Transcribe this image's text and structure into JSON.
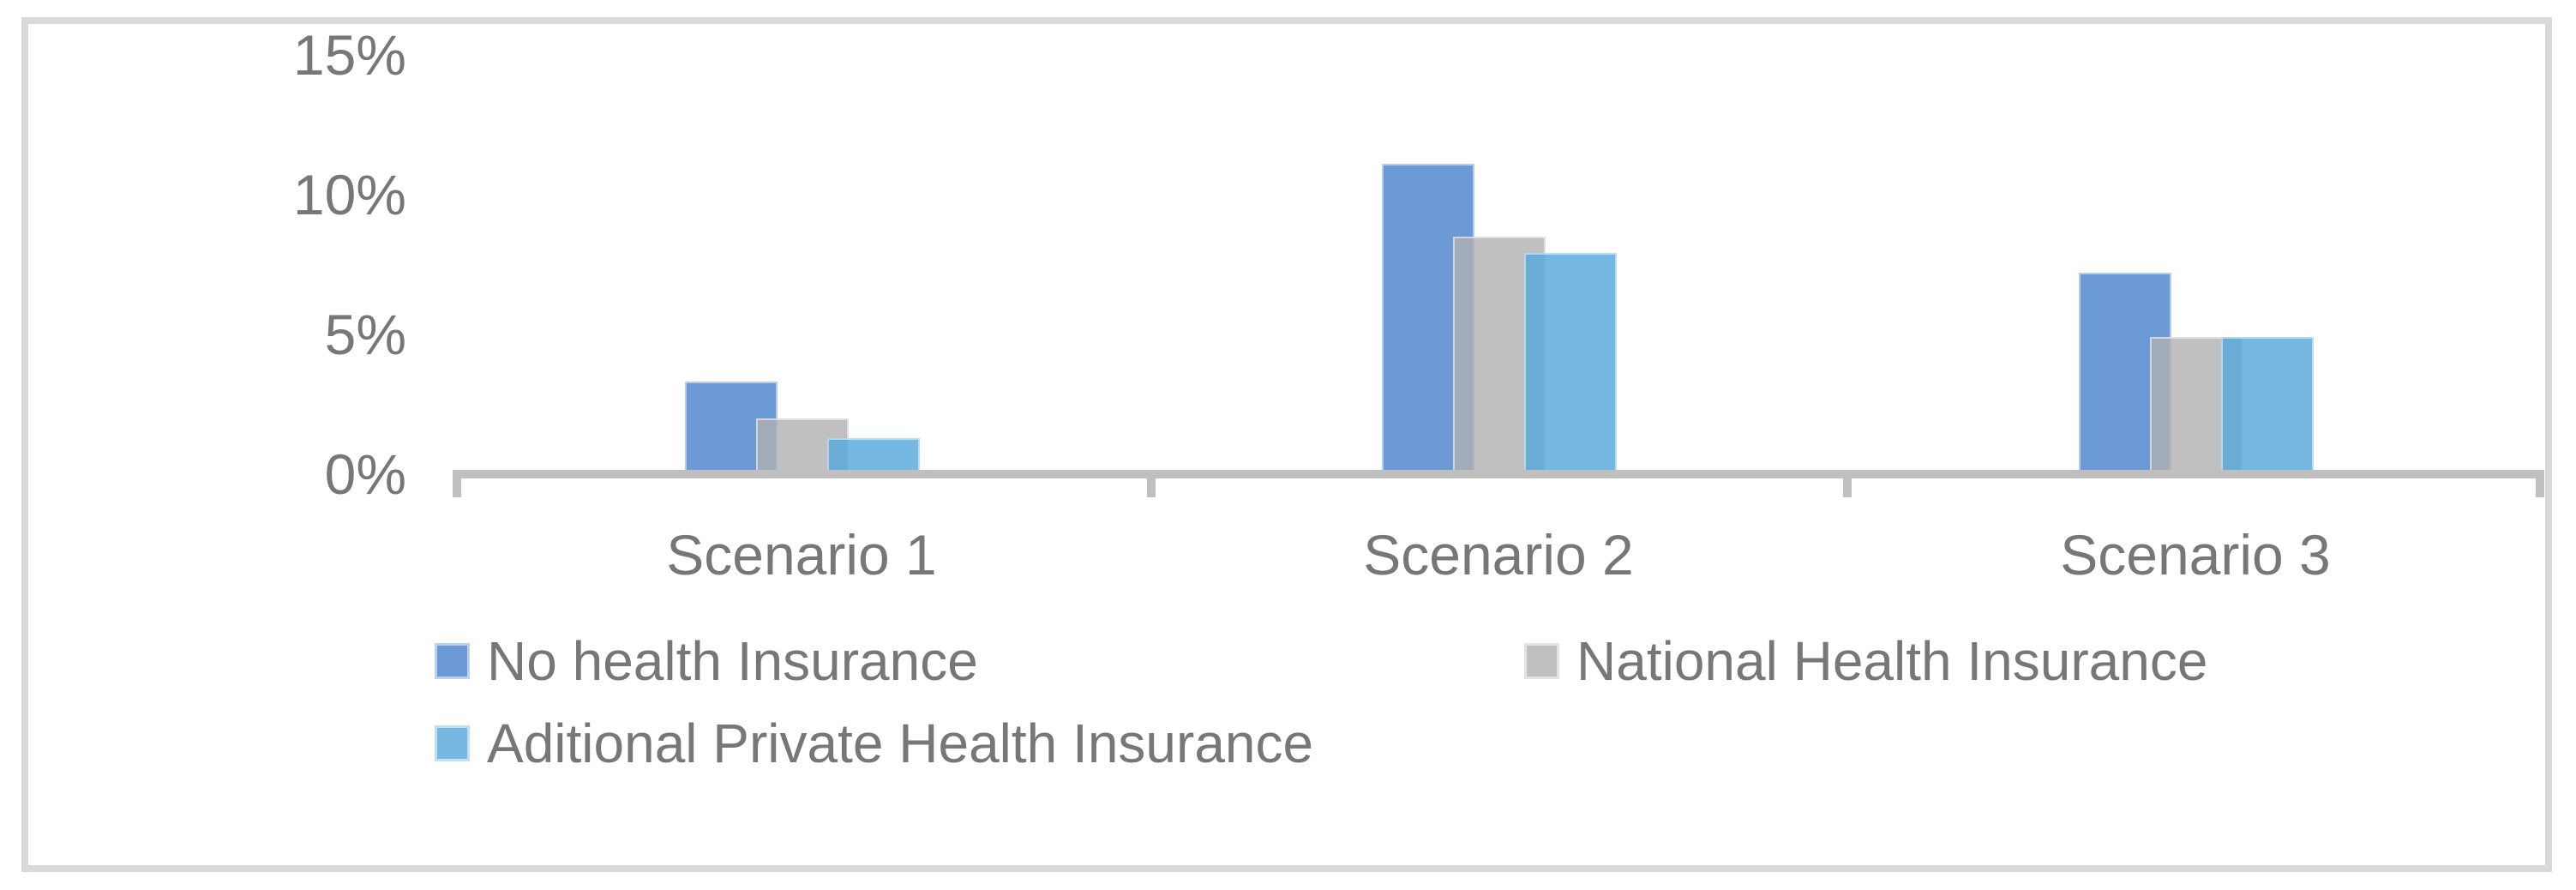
{
  "chart_data": {
    "type": "bar",
    "title": "",
    "categories": [
      "Scenario 1",
      "Scenario 2",
      "Scenario 3"
    ],
    "series": [
      {
        "name": "No health Insurance",
        "color": "#6B9AD6",
        "fill_rgba": "rgba(70,129,204,0.8)",
        "values": [
          3.3,
          11.1,
          7.2
        ]
      },
      {
        "name": "National Health Insurance",
        "color": "#C0C0C2",
        "fill_rgba": "rgba(176,176,178,0.8)",
        "values": [
          2.0,
          8.5,
          4.9
        ]
      },
      {
        "name": "Aditional Private Health Insurance",
        "color": "#75B9E3",
        "fill_rgba": "rgba(83,168,220,0.8)",
        "values": [
          1.3,
          7.9,
          4.9
        ]
      }
    ],
    "y_ticks": [
      {
        "label": "15%",
        "value": 15
      },
      {
        "label": "10%",
        "value": 10
      },
      {
        "label": "5%",
        "value": 5
      },
      {
        "label": "0%",
        "value": 0
      }
    ],
    "ylim": [
      0,
      15
    ],
    "unit": "%",
    "grid": false,
    "legend_position": "bottom",
    "axis_color": "#BFBFBF",
    "label_color": "#777777",
    "border_color": "#D9D9D9",
    "background_color": "#FFFFFF"
  }
}
